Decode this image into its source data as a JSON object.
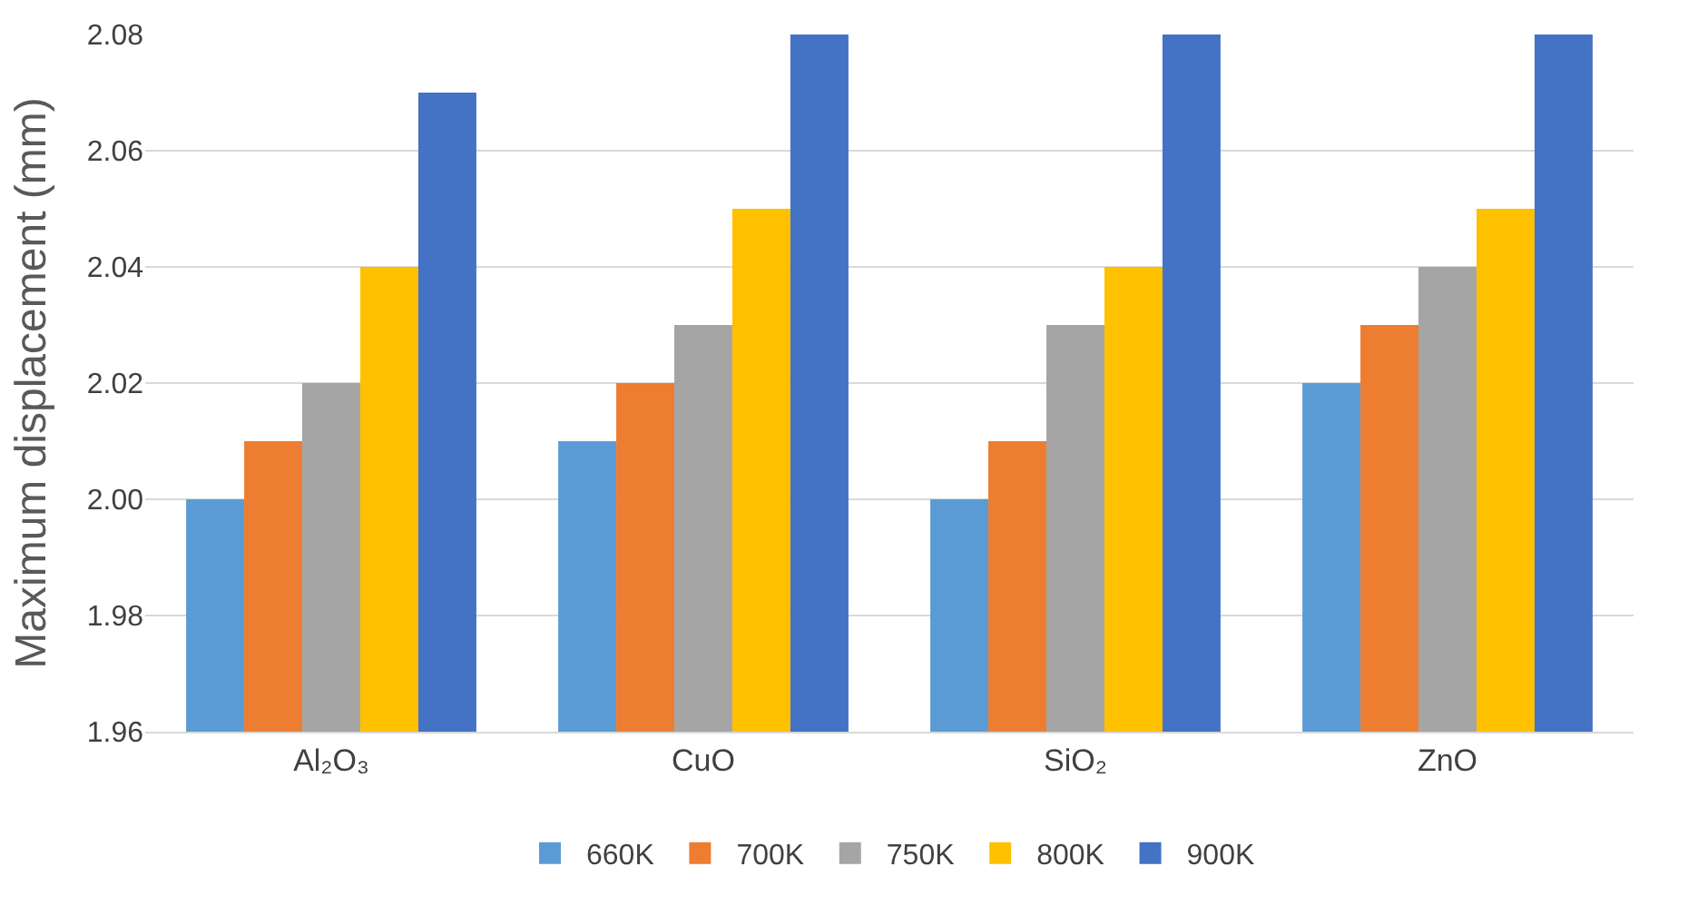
{
  "chart_data": {
    "type": "bar",
    "ylabel": "Maximum displacement (mm)",
    "categories": [
      "Al₂O₃",
      "CuO",
      "SiO₂",
      "ZnO"
    ],
    "series": [
      {
        "name": "660K",
        "color": "#5b9bd5",
        "values": [
          2.0,
          2.01,
          2.0,
          2.02
        ]
      },
      {
        "name": "700K",
        "color": "#ed7d31",
        "values": [
          2.01,
          2.02,
          2.01,
          2.03
        ]
      },
      {
        "name": "750K",
        "color": "#a5a5a5",
        "values": [
          2.02,
          2.03,
          2.03,
          2.04
        ]
      },
      {
        "name": "800K",
        "color": "#ffc000",
        "values": [
          2.04,
          2.05,
          2.04,
          2.05
        ]
      },
      {
        "name": "900K",
        "color": "#4472c4",
        "values": [
          2.07,
          2.08,
          2.08,
          2.08
        ]
      }
    ],
    "ylim": [
      1.96,
      2.08
    ],
    "yticks": [
      1.96,
      1.98,
      {
        "value": 2.0,
        "label": "2.00"
      },
      2.02,
      2.04,
      2.06,
      2.08
    ],
    "grid": "y",
    "legend": "bottom"
  }
}
